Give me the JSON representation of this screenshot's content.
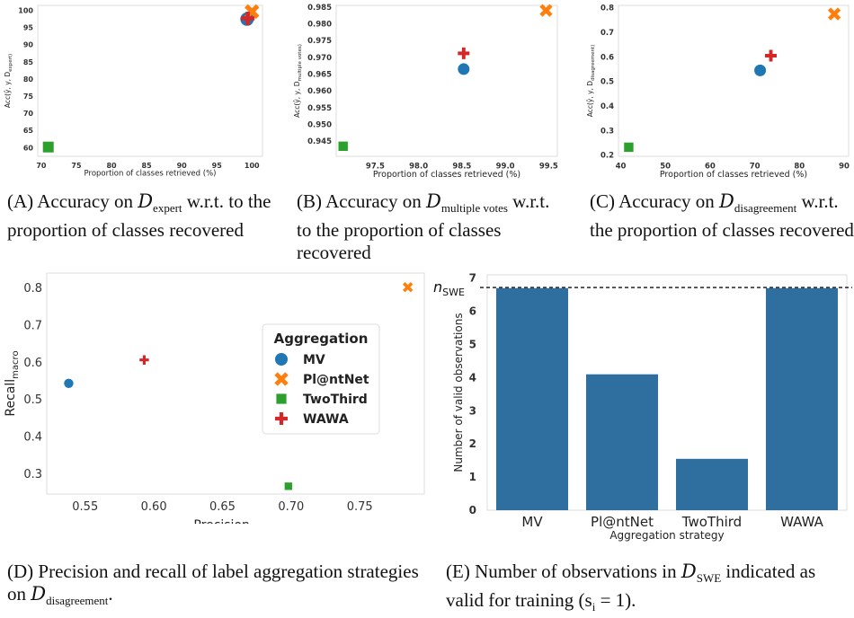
{
  "captions": [
    {
      "letter": "(A)",
      "pre": " Accuracy on ",
      "math": "D",
      "sub": "expert",
      "post": " w.r.t. to the proportion of classes recovered"
    },
    {
      "letter": "(B)",
      "pre": " Accuracy on ",
      "math": "D",
      "sub": "multiple votes",
      "post": " w.r.t. to the proportion of classes recovered"
    },
    {
      "letter": "(C)",
      "pre": " Accuracy on ",
      "math": "D",
      "sub": "disagreement",
      "post": " w.r.t. the proportion of classes recovered"
    },
    {
      "letter": "(D)",
      "pre": " Precision and recall of label aggregation strategies on ",
      "math": "D",
      "sub": "disagreement",
      "post": "."
    },
    {
      "letter": "(E)",
      "pre": " Number of observations in ",
      "math": "D",
      "sub": "SWE",
      "post": " indicated as valid for training (s",
      "post_sub": "i",
      "post2": " = 1)."
    }
  ],
  "colors": {
    "MV": "#1f77b4",
    "Pl@ntNet": "#ff7f0e",
    "TwoThird": "#2ca02c",
    "WAWA": "#d62728",
    "bar": "#2e6fa0"
  },
  "chart_data": [
    {
      "id": "A",
      "type": "scatter",
      "xlabel": "Proportion of classes retrieved (%)",
      "ylabel": "Acc(ŷ, y, D_expert)",
      "xlim": [
        69.5,
        101.5
      ],
      "ylim": [
        57.5,
        101.5
      ],
      "xticks": [
        70,
        75,
        80,
        85,
        90,
        95,
        100
      ],
      "yticks": [
        60,
        65,
        70,
        75,
        80,
        85,
        90,
        95,
        100
      ],
      "grid": false,
      "series": [
        {
          "name": "MV",
          "marker": "circle",
          "x": [
            99.3
          ],
          "y": [
            97.5
          ]
        },
        {
          "name": "Pl@ntNet",
          "marker": "x",
          "x": [
            100.0
          ],
          "y": [
            99.7
          ]
        },
        {
          "name": "TwoThird",
          "marker": "square",
          "x": [
            71.0
          ],
          "y": [
            60.2
          ]
        },
        {
          "name": "WAWA",
          "marker": "plus",
          "x": [
            99.4
          ],
          "y": [
            97.7
          ]
        }
      ]
    },
    {
      "id": "B",
      "type": "scatter",
      "xlabel": "Proportion of classes retrieved (%)",
      "ylabel": "Acc(ŷ, y, D_multiple votes)",
      "xlim": [
        97.05,
        99.6
      ],
      "ylim": [
        0.9405,
        0.9855
      ],
      "xticks": [
        97.5,
        98.0,
        98.5,
        99.0,
        99.5
      ],
      "yticks": [
        0.945,
        0.95,
        0.955,
        0.96,
        0.965,
        0.97,
        0.975,
        0.98,
        0.985
      ],
      "grid": false,
      "series": [
        {
          "name": "MV",
          "marker": "circle",
          "x": [
            98.52
          ],
          "y": [
            0.9665
          ]
        },
        {
          "name": "Pl@ntNet",
          "marker": "x",
          "x": [
            99.47
          ],
          "y": [
            0.984
          ]
        },
        {
          "name": "TwoThird",
          "marker": "square",
          "x": [
            97.13
          ],
          "y": [
            0.9435
          ]
        },
        {
          "name": "WAWA",
          "marker": "plus",
          "x": [
            98.52
          ],
          "y": [
            0.9712
          ]
        }
      ]
    },
    {
      "id": "C",
      "type": "scatter",
      "xlabel": "Proportion of classes retrieved (%)",
      "ylabel": "Acc(ŷ, y, D_disagreement)",
      "xlim": [
        39.5,
        91.0
      ],
      "ylim": [
        0.195,
        0.81
      ],
      "xticks": [
        40,
        50,
        60,
        70,
        80,
        90
      ],
      "yticks": [
        0.2,
        0.3,
        0.4,
        0.5,
        0.6,
        0.7,
        0.8
      ],
      "grid": false,
      "series": [
        {
          "name": "MV",
          "marker": "circle",
          "x": [
            71.2
          ],
          "y": [
            0.545
          ]
        },
        {
          "name": "Pl@ntNet",
          "marker": "x",
          "x": [
            87.8
          ],
          "y": [
            0.775
          ]
        },
        {
          "name": "TwoThird",
          "marker": "square",
          "x": [
            41.8
          ],
          "y": [
            0.232
          ]
        },
        {
          "name": "WAWA",
          "marker": "plus",
          "x": [
            73.6
          ],
          "y": [
            0.605
          ]
        }
      ]
    },
    {
      "id": "D",
      "type": "scatter",
      "xlabel": "Precision_macro",
      "ylabel": "Recall_macro",
      "xlim": [
        0.522,
        0.797
      ],
      "ylim": [
        0.245,
        0.84
      ],
      "xticks": [
        0.55,
        0.6,
        0.65,
        0.7,
        0.75
      ],
      "yticks": [
        0.3,
        0.4,
        0.5,
        0.6,
        0.7,
        0.8
      ],
      "xticklabels": [
        "0.55",
        "0.60",
        "0.65",
        "0.70",
        "0.75"
      ],
      "yticklabels": [
        "0.3",
        "0.4",
        "0.5",
        "0.6",
        "0.7",
        "0.8"
      ],
      "grid": false,
      "legend": {
        "title": "Aggregation",
        "placement": "center-right",
        "entries": [
          "MV",
          "Pl@ntNet",
          "TwoThird",
          "WAWA"
        ]
      },
      "series": [
        {
          "name": "MV",
          "marker": "circle",
          "x": [
            0.538
          ],
          "y": [
            0.543
          ]
        },
        {
          "name": "Pl@ntNet",
          "marker": "x",
          "x": [
            0.785
          ],
          "y": [
            0.802
          ]
        },
        {
          "name": "TwoThird",
          "marker": "square",
          "x": [
            0.698
          ],
          "y": [
            0.266
          ]
        },
        {
          "name": "WAWA",
          "marker": "plus",
          "x": [
            0.593
          ],
          "y": [
            0.606
          ]
        }
      ]
    },
    {
      "id": "E",
      "type": "bar",
      "xlabel": "Aggregation strategy",
      "ylabel": "Number of valid observations",
      "categories": [
        "MV",
        "Pl@ntNet",
        "TwoThird",
        "WAWA"
      ],
      "values": [
        6.7,
        4.1,
        1.55,
        6.7
      ],
      "ylim": [
        0,
        7.1
      ],
      "yticks": [
        0,
        1,
        2,
        3,
        4,
        5,
        6,
        7
      ],
      "reference_line": {
        "label": "n_SWE",
        "value": 6.72,
        "style": "dashed"
      },
      "grid": false
    }
  ]
}
